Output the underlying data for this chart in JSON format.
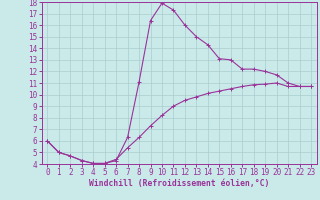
{
  "xlabel": "Windchill (Refroidissement éolien,°C)",
  "xlim": [
    -0.5,
    23.5
  ],
  "ylim": [
    4,
    18
  ],
  "xticks": [
    0,
    1,
    2,
    3,
    4,
    5,
    6,
    7,
    8,
    9,
    10,
    11,
    12,
    13,
    14,
    15,
    16,
    17,
    18,
    19,
    20,
    21,
    22,
    23
  ],
  "yticks": [
    4,
    5,
    6,
    7,
    8,
    9,
    10,
    11,
    12,
    13,
    14,
    15,
    16,
    17,
    18
  ],
  "bg_color": "#caeaea",
  "line_color": "#993399",
  "grid_color": "#aacccc",
  "line1_x": [
    0,
    1,
    2,
    3,
    4,
    5,
    6,
    7,
    8,
    9,
    10,
    11,
    12,
    13,
    14,
    15,
    16,
    17,
    18,
    19,
    20,
    21,
    22,
    23
  ],
  "line1_y": [
    6.0,
    5.0,
    4.7,
    4.3,
    4.05,
    4.05,
    4.3,
    6.3,
    11.1,
    16.4,
    17.9,
    17.3,
    16.0,
    15.0,
    14.3,
    13.1,
    13.0,
    12.2,
    12.2,
    12.0,
    11.7,
    11.0,
    10.7,
    10.7
  ],
  "line2_x": [
    0,
    1,
    2,
    3,
    4,
    5,
    6,
    7,
    8,
    9,
    10,
    11,
    12,
    13,
    14,
    15,
    16,
    17,
    18,
    19,
    20,
    21,
    22,
    23
  ],
  "line2_y": [
    6.0,
    5.0,
    4.7,
    4.3,
    4.05,
    4.05,
    4.4,
    5.4,
    6.3,
    7.3,
    8.2,
    9.0,
    9.5,
    9.8,
    10.1,
    10.3,
    10.5,
    10.7,
    10.85,
    10.9,
    11.0,
    10.7,
    10.7,
    10.7
  ],
  "markersize": 2.5,
  "linewidth": 0.8,
  "fontsize_ticks": 5.5,
  "fontsize_xlabel": 5.8
}
